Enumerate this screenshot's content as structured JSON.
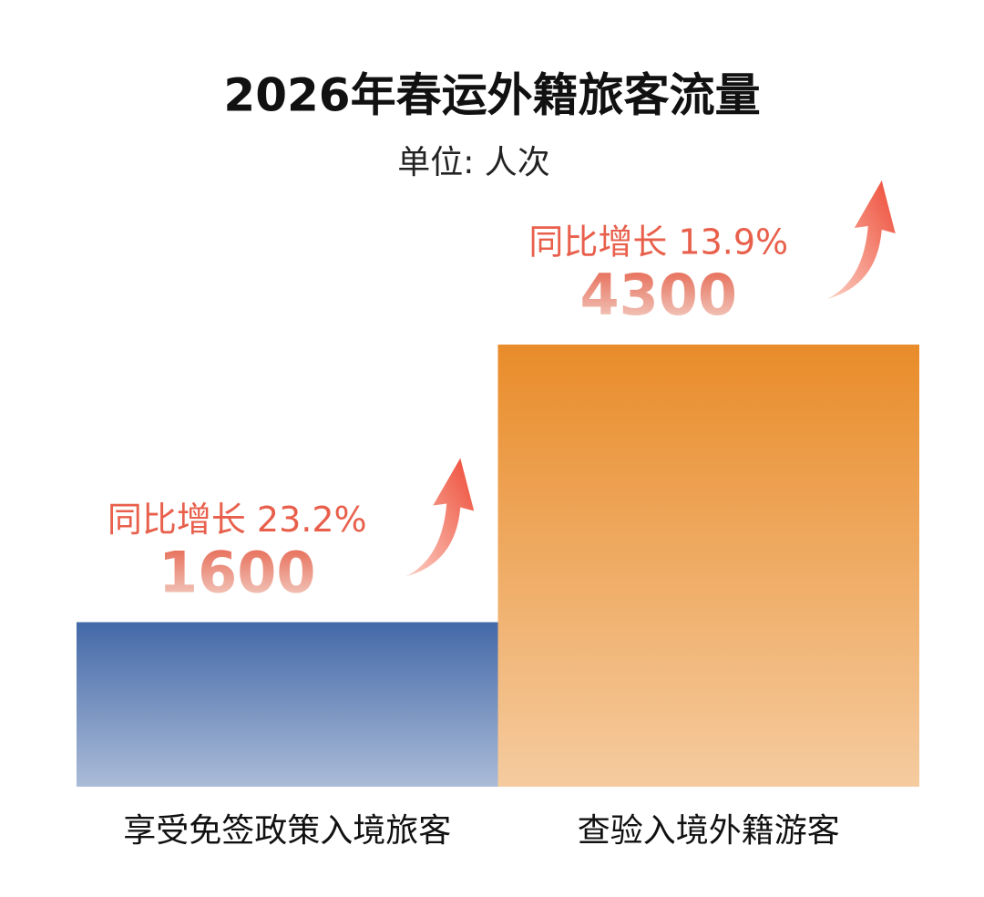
{
  "chart_data": {
    "type": "bar",
    "title": "2026年春运外籍旅客流量",
    "subtitle": "单位: 人次",
    "categories": [
      "享受免签政策入境旅客",
      "查验入境外籍游客"
    ],
    "values": [
      1600,
      4300
    ],
    "colors": [
      "#4469a8",
      "#e98c2a"
    ],
    "annotations": [
      "同比增长 23.2%",
      "同比增长 13.9%"
    ]
  }
}
